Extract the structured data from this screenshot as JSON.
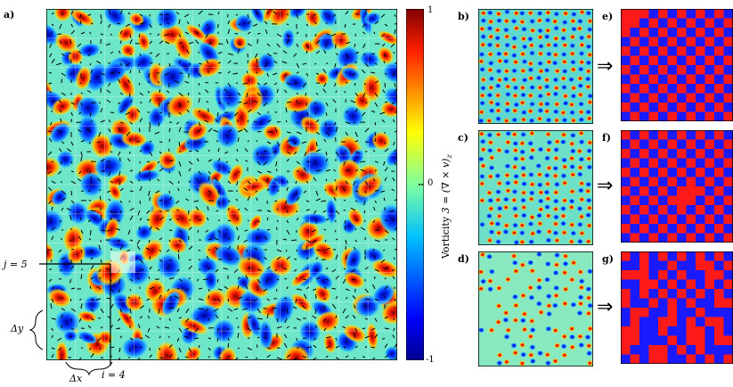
{
  "panels": {
    "a": "a)",
    "b": "b)",
    "c": "c)",
    "d": "d)",
    "e": "e)",
    "f": "f)",
    "g": "g)"
  },
  "colorbar": {
    "label": "Vorticity",
    "formula": "3 = (∇ × v)",
    "subscript": "z",
    "tick_max": "1",
    "tick_mid": "0",
    "tick_min": "-1",
    "colormap": [
      "#00008f",
      "#0000ff",
      "#0080ff",
      "#00ffff",
      "#80ff80",
      "#ffff00",
      "#ff8000",
      "#ff0000",
      "#800000"
    ]
  },
  "annotations": {
    "j_label": "j = 5",
    "i_label": "i = 4",
    "dy_label": "Δy",
    "dx_label": "Δx"
  },
  "implies_symbol": "⇒",
  "grid": {
    "size": 12
  },
  "colors": {
    "red": "#ff1a1a",
    "blue": "#1a1aff"
  }
}
